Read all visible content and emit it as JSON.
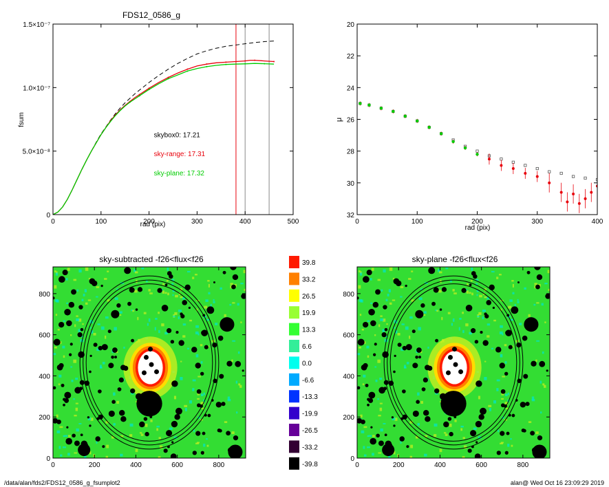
{
  "footer": {
    "left": "/data/alan/fds2/FDS12_0586_g_fsumplot2",
    "right": "alan@  Wed Oct 16 23:09:29 2019"
  },
  "chart_data": [
    {
      "type": "line",
      "title": "FDS12_0586_g",
      "xlabel": "rad (pix)",
      "ylabel": "fsum",
      "xlim": [
        0,
        500
      ],
      "ylim": [
        0,
        1.5e-07
      ],
      "xticks": [
        "0",
        "100",
        "200",
        "300",
        "400",
        "500"
      ],
      "yticks": [
        {
          "value": 0,
          "label": "0"
        },
        {
          "value": 5e-08,
          "label": "5.0×10⁻⁸"
        },
        {
          "value": 1e-07,
          "label": "1.0×10⁻⁷"
        },
        {
          "value": 1.5e-07,
          "label": "1.5×10⁻⁷"
        }
      ],
      "annotations": [
        {
          "text": "skybox0: 17.21",
          "color": "#000000",
          "x": 210,
          "y": 6.1e-08
        },
        {
          "text": "sky-range: 17.31",
          "color": "#e8000b",
          "x": 210,
          "y": 4.6e-08
        },
        {
          "text": "sky-plane: 17.32",
          "color": "#00cc00",
          "x": 210,
          "y": 3.1e-08
        }
      ],
      "vlines": [
        {
          "x": 381,
          "color": "#e8000b"
        },
        {
          "x": 400,
          "color": "#888888"
        },
        {
          "x": 450,
          "color": "#888888"
        }
      ],
      "series": [
        {
          "style": "dashed",
          "color": "#000000",
          "x": [
            0,
            10,
            20,
            30,
            40,
            50,
            60,
            70,
            80,
            90,
            100,
            110,
            120,
            130,
            140,
            150,
            160,
            170,
            180,
            190,
            200,
            220,
            240,
            260,
            280,
            300,
            320,
            340,
            360,
            380,
            400,
            420,
            440,
            460
          ],
          "y": [
            0,
            2e-09,
            6e-09,
            1.2e-08,
            1.95e-08,
            2.75e-08,
            3.55e-08,
            4.3e-08,
            5e-08,
            5.7e-08,
            6.35e-08,
            6.9e-08,
            7.45e-08,
            7.95e-08,
            8.4e-08,
            8.8e-08,
            9.15e-08,
            9.5e-08,
            9.8e-08,
            1.01e-07,
            1.04e-07,
            1.095e-07,
            1.145e-07,
            1.19e-07,
            1.23e-07,
            1.265e-07,
            1.29e-07,
            1.31e-07,
            1.325e-07,
            1.335e-07,
            1.345e-07,
            1.355e-07,
            1.362e-07,
            1.367e-07
          ]
        },
        {
          "style": "solid",
          "color": "#e8000b",
          "x": [
            0,
            10,
            20,
            30,
            40,
            50,
            60,
            70,
            80,
            90,
            100,
            110,
            120,
            130,
            140,
            150,
            160,
            170,
            180,
            190,
            200,
            220,
            240,
            260,
            280,
            300,
            320,
            340,
            360,
            380,
            400,
            410,
            420,
            440,
            460
          ],
          "y": [
            0,
            2e-09,
            6e-09,
            1.2e-08,
            1.95e-08,
            2.75e-08,
            3.55e-08,
            4.3e-08,
            5e-08,
            5.65e-08,
            6.3e-08,
            6.85e-08,
            7.4e-08,
            7.85e-08,
            8.25e-08,
            8.6e-08,
            8.9e-08,
            9.2e-08,
            9.45e-08,
            9.7e-08,
            9.95e-08,
            1.04e-07,
            1.08e-07,
            1.115e-07,
            1.145e-07,
            1.17e-07,
            1.185e-07,
            1.195e-07,
            1.2e-07,
            1.205e-07,
            1.21e-07,
            1.215e-07,
            1.215e-07,
            1.21e-07,
            1.205e-07
          ]
        },
        {
          "style": "solid",
          "color": "#00cc00",
          "x": [
            0,
            10,
            20,
            30,
            40,
            50,
            60,
            70,
            80,
            90,
            100,
            110,
            120,
            130,
            140,
            150,
            160,
            170,
            180,
            190,
            200,
            220,
            240,
            260,
            280,
            300,
            320,
            340,
            360,
            380,
            400,
            420,
            440,
            460
          ],
          "y": [
            0,
            2e-09,
            6e-09,
            1.2e-08,
            1.95e-08,
            2.75e-08,
            3.55e-08,
            4.3e-08,
            5e-08,
            5.65e-08,
            6.3e-08,
            6.85e-08,
            7.35e-08,
            7.8e-08,
            8.2e-08,
            8.55e-08,
            8.85e-08,
            9.1e-08,
            9.35e-08,
            9.6e-08,
            9.85e-08,
            1.03e-07,
            1.07e-07,
            1.1e-07,
            1.13e-07,
            1.15e-07,
            1.165e-07,
            1.175e-07,
            1.182e-07,
            1.185e-07,
            1.187e-07,
            1.19e-07,
            1.188e-07,
            1.185e-07
          ]
        }
      ]
    },
    {
      "type": "scatter",
      "title": "",
      "xlabel": "rad (pix)",
      "ylabel": "μ",
      "xlim": [
        0,
        400
      ],
      "ylim": [
        32,
        20
      ],
      "xticks": [
        "0",
        "100",
        "200",
        "300",
        "400"
      ],
      "yticks": [
        "20",
        "22",
        "24",
        "26",
        "28",
        "30",
        "32"
      ],
      "series": [
        {
          "marker": "square-open",
          "color": "#555555",
          "x": [
            5,
            20,
            40,
            60,
            80,
            100,
            120,
            140,
            160,
            180,
            200,
            220,
            240,
            260,
            280,
            300,
            320,
            340,
            360,
            380,
            400
          ],
          "y": [
            25.0,
            25.1,
            25.3,
            25.5,
            25.8,
            26.1,
            26.5,
            26.9,
            27.3,
            27.7,
            28.0,
            28.3,
            28.5,
            28.7,
            28.9,
            29.1,
            29.3,
            29.4,
            29.6,
            29.7,
            29.8
          ]
        },
        {
          "marker": "point-errorbar",
          "color": "#e8000b",
          "x": [
            5,
            20,
            40,
            60,
            80,
            100,
            120,
            140,
            160,
            180,
            200,
            220,
            240,
            260,
            280,
            300,
            320,
            340,
            350,
            360,
            370,
            380,
            390,
            400
          ],
          "y": [
            25.0,
            25.1,
            25.3,
            25.5,
            25.8,
            26.1,
            26.5,
            26.9,
            27.4,
            27.8,
            28.2,
            28.5,
            28.9,
            29.1,
            29.4,
            29.6,
            30.0,
            30.6,
            31.2,
            30.7,
            31.3,
            31.0,
            30.6,
            30.2
          ]
        },
        {
          "marker": "point",
          "color": "#00cc00",
          "x": [
            5,
            20,
            40,
            60,
            80,
            100,
            120,
            140,
            160,
            180,
            200
          ],
          "y": [
            25.0,
            25.1,
            25.3,
            25.5,
            25.8,
            26.1,
            26.5,
            26.9,
            27.4,
            27.8,
            28.2
          ]
        }
      ]
    },
    {
      "type": "heatmap",
      "title": "sky-subtracted -f26<flux<f26",
      "xlim": [
        0,
        930
      ],
      "ylim": [
        0,
        930
      ],
      "xticks": [
        "0",
        "200",
        "400",
        "600",
        "800"
      ],
      "yticks": [
        "0",
        "200",
        "400",
        "600",
        "800"
      ],
      "background_color": "#33dd33",
      "ellipse_center": [
        465,
        465
      ],
      "ellipse_axes": [
        [
          305,
          380
        ],
        [
          320,
          398
        ],
        [
          335,
          418
        ]
      ],
      "core_center": [
        470,
        440
      ],
      "mask_holes": [
        [
          470,
          530
        ],
        [
          450,
          490
        ],
        [
          475,
          455
        ],
        [
          500,
          420
        ],
        [
          440,
          415
        ]
      ],
      "big_source": {
        "x": 465,
        "y": 265,
        "r": 62
      },
      "masked_sources": [
        [
          150,
          40,
          30
        ],
        [
          880,
          30,
          35
        ],
        [
          840,
          650,
          35
        ],
        [
          760,
          720,
          18
        ],
        [
          70,
          710,
          16
        ],
        [
          300,
          700,
          20
        ],
        [
          540,
          730,
          16
        ],
        [
          250,
          540,
          15
        ],
        [
          620,
          560,
          14
        ],
        [
          700,
          450,
          14
        ],
        [
          120,
          330,
          16
        ],
        [
          340,
          190,
          14
        ],
        [
          600,
          200,
          14
        ],
        [
          800,
          260,
          14
        ],
        [
          200,
          850,
          14
        ],
        [
          420,
          820,
          12
        ],
        [
          650,
          830,
          14
        ],
        [
          880,
          880,
          14
        ],
        [
          130,
          600,
          12
        ],
        [
          560,
          620,
          12
        ],
        [
          330,
          380,
          12
        ],
        [
          780,
          550,
          12
        ],
        [
          230,
          200,
          12
        ],
        [
          700,
          120,
          12
        ],
        [
          40,
          450,
          12
        ]
      ]
    },
    {
      "type": "heatmap",
      "title": "sky-plane -f26<flux<f26",
      "xlim": [
        0,
        930
      ],
      "ylim": [
        0,
        930
      ],
      "xticks": [
        "0",
        "200",
        "400",
        "600",
        "800"
      ],
      "yticks": [
        "0",
        "200",
        "400",
        "600",
        "800"
      ],
      "background_color": "#33dd33",
      "ellipse_center": [
        465,
        465
      ],
      "ellipse_axes": [
        [
          305,
          380
        ],
        [
          320,
          398
        ],
        [
          335,
          418
        ]
      ],
      "core_center": [
        470,
        440
      ],
      "mask_holes": [
        [
          470,
          530
        ],
        [
          450,
          490
        ],
        [
          475,
          455
        ],
        [
          500,
          420
        ],
        [
          440,
          415
        ]
      ],
      "big_source": {
        "x": 465,
        "y": 265,
        "r": 62
      },
      "masked_sources": [
        [
          150,
          40,
          30
        ],
        [
          880,
          30,
          35
        ],
        [
          840,
          650,
          35
        ],
        [
          760,
          720,
          18
        ],
        [
          70,
          710,
          16
        ],
        [
          300,
          700,
          20
        ],
        [
          540,
          730,
          16
        ],
        [
          250,
          540,
          15
        ],
        [
          620,
          560,
          14
        ],
        [
          700,
          450,
          14
        ],
        [
          120,
          330,
          16
        ],
        [
          340,
          190,
          14
        ],
        [
          600,
          200,
          14
        ],
        [
          800,
          260,
          14
        ],
        [
          200,
          850,
          14
        ],
        [
          420,
          820,
          12
        ],
        [
          650,
          830,
          14
        ],
        [
          880,
          880,
          14
        ],
        [
          130,
          600,
          12
        ],
        [
          560,
          620,
          12
        ],
        [
          330,
          380,
          12
        ],
        [
          780,
          550,
          12
        ],
        [
          230,
          200,
          12
        ],
        [
          700,
          120,
          12
        ],
        [
          40,
          450,
          12
        ]
      ]
    },
    {
      "type": "colorbar",
      "labels": [
        "39.8",
        "33.2",
        "26.5",
        "19.9",
        "13.3",
        "6.6",
        "0.0",
        "-6.6",
        "-13.3",
        "-19.9",
        "-26.5",
        "-33.2",
        "-39.8"
      ],
      "colors": [
        "#ff1a00",
        "#ff8000",
        "#ffff00",
        "#99ff33",
        "#33ff33",
        "#33ee99",
        "#00ffee",
        "#00aaff",
        "#0033ff",
        "#3300cc",
        "#660099",
        "#330033",
        "#000000"
      ]
    }
  ]
}
